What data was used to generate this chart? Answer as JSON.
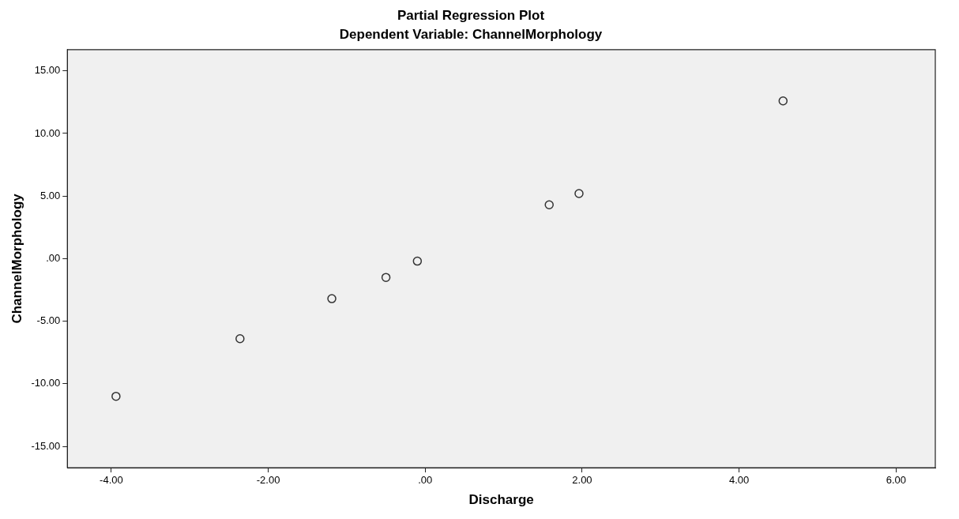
{
  "chart_data": {
    "type": "scatter",
    "title": "Partial Regression Plot",
    "subtitle": "Dependent Variable: ChannelMorphology",
    "xlabel": "Discharge",
    "ylabel": "ChannelMorphology",
    "x": [
      -3.94,
      -2.36,
      -1.19,
      -0.5,
      -0.1,
      1.58,
      1.96,
      4.56
    ],
    "series": [
      {
        "color": "#333333",
        "values": [
          -11.0,
          -6.4,
          -3.2,
          -1.5,
          -0.2,
          4.3,
          5.2,
          12.6
        ]
      }
    ],
    "xlim": [
      -4.56,
      6.5
    ],
    "ylim": [
      -16.7,
      16.7
    ],
    "xticks": [
      {
        "value": -4,
        "label": "-4.00"
      },
      {
        "value": -2,
        "label": "-2.00"
      },
      {
        "value": 0,
        "label": ".00"
      },
      {
        "value": 2,
        "label": "2.00"
      },
      {
        "value": 4,
        "label": "4.00"
      },
      {
        "value": 6,
        "label": "6.00"
      }
    ],
    "yticks": [
      {
        "value": -15,
        "label": "-15.00"
      },
      {
        "value": -10,
        "label": "-10.00"
      },
      {
        "value": -5,
        "label": "-5.00"
      },
      {
        "value": 0,
        "label": ".00"
      },
      {
        "value": 5,
        "label": "5.00"
      },
      {
        "value": 10,
        "label": "10.00"
      },
      {
        "value": 15,
        "label": "15.00"
      }
    ],
    "grid": false,
    "legend": false,
    "marker": "circle"
  }
}
